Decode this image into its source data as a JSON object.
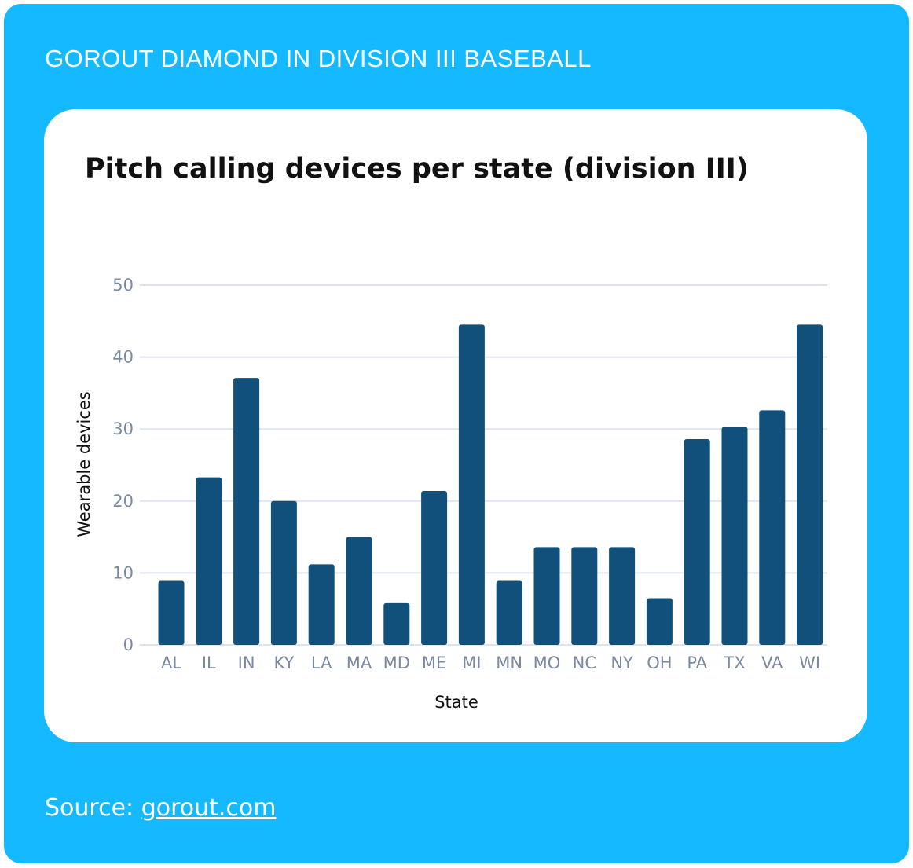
{
  "header": {
    "brand_title": "GOROUT DIAMOND IN DIVISION III BASEBALL"
  },
  "footer": {
    "source_label": "Source:",
    "source_link": "gorout.com"
  },
  "colors": {
    "background": "#15b9ff",
    "bar": "#11507a",
    "grid": "#dde3ee",
    "tick": "#7a8aa3"
  },
  "chart_data": {
    "type": "bar",
    "title": "Pitch calling devices per state (division III)",
    "xlabel": "State",
    "ylabel": "Wearable devices",
    "ylim": [
      0,
      50
    ],
    "yticks": [
      0,
      10,
      20,
      30,
      40,
      50
    ],
    "grid": true,
    "categories": [
      "AL",
      "IL",
      "IN",
      "KY",
      "LA",
      "MA",
      "MD",
      "ME",
      "MI",
      "MN",
      "MO",
      "NC",
      "NY",
      "OH",
      "PA",
      "TX",
      "VA",
      "WI"
    ],
    "values": [
      8.9,
      23.3,
      37.1,
      20,
      11.2,
      15,
      5.8,
      21.4,
      44.5,
      8.9,
      13.6,
      13.6,
      13.6,
      6.5,
      28.6,
      30.3,
      32.6,
      44.5
    ]
  }
}
